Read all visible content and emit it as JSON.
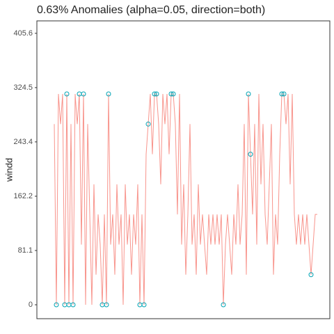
{
  "chart_data": {
    "type": "line",
    "title": "0.63% Anomalies (alpha=0.05, direction=both)",
    "y_label": "windd",
    "ylim": [
      -20.8,
      424.2
    ],
    "yticks": [
      0,
      81.1,
      162.2,
      243.4,
      324.5,
      405.6
    ],
    "series": [
      {
        "name": "windd",
        "color": "#f8948c",
        "values": [
          270,
          0,
          315,
          270,
          315,
          0,
          315,
          0,
          270,
          0,
          315,
          270,
          315,
          90,
          315,
          0,
          270,
          135,
          0,
          180,
          45,
          135,
          90,
          0,
          135,
          0,
          315,
          90,
          135,
          45,
          180,
          90,
          135,
          0,
          180,
          90,
          135,
          45,
          135,
          90,
          180,
          0,
          135,
          0,
          225,
          270,
          315,
          225,
          315,
          315,
          270,
          180,
          315,
          270,
          315,
          225,
          315,
          315,
          270,
          135,
          315,
          90,
          180,
          45,
          135,
          270,
          90,
          135,
          45,
          180,
          90,
          135,
          90,
          45,
          135,
          90,
          135,
          90,
          135,
          90,
          135,
          0,
          90,
          135,
          90,
          45,
          135,
          90,
          180,
          90,
          135,
          270,
          45,
          315,
          225,
          135,
          270,
          90,
          315,
          180,
          270,
          135,
          90,
          180,
          270,
          45,
          135,
          90,
          225,
          315,
          315,
          270,
          315,
          180,
          315,
          135,
          90,
          135,
          90,
          135,
          90,
          135,
          90,
          45,
          90,
          135,
          135
        ]
      },
      {
        "name": "anomalies",
        "color": "#00a3b4",
        "values": [
          null,
          0,
          null,
          null,
          null,
          0,
          315,
          0,
          null,
          0,
          null,
          null,
          315,
          null,
          315,
          null,
          null,
          null,
          null,
          null,
          null,
          null,
          null,
          0,
          null,
          0,
          315,
          null,
          null,
          null,
          null,
          null,
          null,
          null,
          null,
          null,
          null,
          null,
          null,
          null,
          null,
          0,
          null,
          0,
          null,
          270,
          null,
          null,
          315,
          315,
          null,
          null,
          null,
          null,
          null,
          null,
          315,
          315,
          null,
          null,
          null,
          null,
          null,
          null,
          null,
          null,
          null,
          null,
          null,
          null,
          null,
          null,
          null,
          null,
          null,
          null,
          null,
          null,
          null,
          null,
          null,
          0,
          null,
          null,
          null,
          null,
          null,
          null,
          null,
          null,
          null,
          null,
          null,
          315,
          225,
          null,
          null,
          null,
          null,
          null,
          null,
          null,
          null,
          null,
          null,
          null,
          null,
          null,
          null,
          315,
          315,
          null,
          null,
          null,
          null,
          null,
          null,
          null,
          null,
          null,
          null,
          null,
          null,
          45,
          null,
          null,
          null
        ]
      }
    ]
  }
}
